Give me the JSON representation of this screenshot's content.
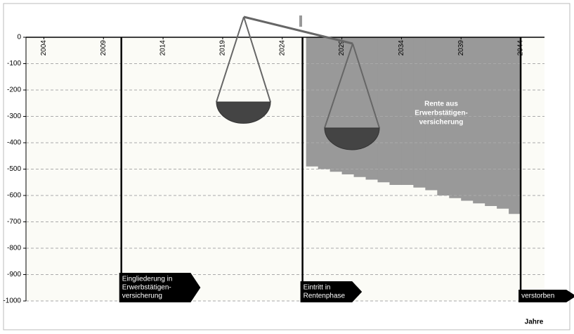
{
  "chart_data": {
    "type": "area",
    "x": [
      2026,
      2027,
      2028,
      2029,
      2030,
      2031,
      2032,
      2033,
      2034,
      2035,
      2036,
      2037,
      2038,
      2039,
      2040,
      2041,
      2042,
      2043
    ],
    "values": [
      -490,
      -500,
      -510,
      -520,
      -530,
      -540,
      -550,
      -560,
      -560,
      -570,
      -580,
      -600,
      -610,
      -620,
      -630,
      -640,
      -650,
      -670
    ],
    "color": "#999999",
    "area_label": [
      "Rente aus",
      "Erwerbstätigen-",
      "versicherung"
    ],
    "xlim": [
      2002.5,
      2046
    ],
    "xticks": [
      2004,
      2009,
      2014,
      2019,
      2024,
      2029,
      2034,
      2039,
      2044
    ],
    "ylim": [
      -1000,
      0
    ],
    "yticks": [
      0,
      -100,
      -200,
      -300,
      -400,
      -500,
      -600,
      -700,
      -800,
      -900,
      -1000
    ],
    "grid": true,
    "x_label": "Jahre",
    "events": [
      {
        "x": 2010.5,
        "label": [
          "Eingliederung in",
          "Erwerbstätigen-",
          "versicherung"
        ]
      },
      {
        "x": 2025.7,
        "label": [
          "Eintritt in",
          "Rentenphase"
        ]
      },
      {
        "x": 2044,
        "label": [
          "verstorben"
        ]
      }
    ]
  }
}
